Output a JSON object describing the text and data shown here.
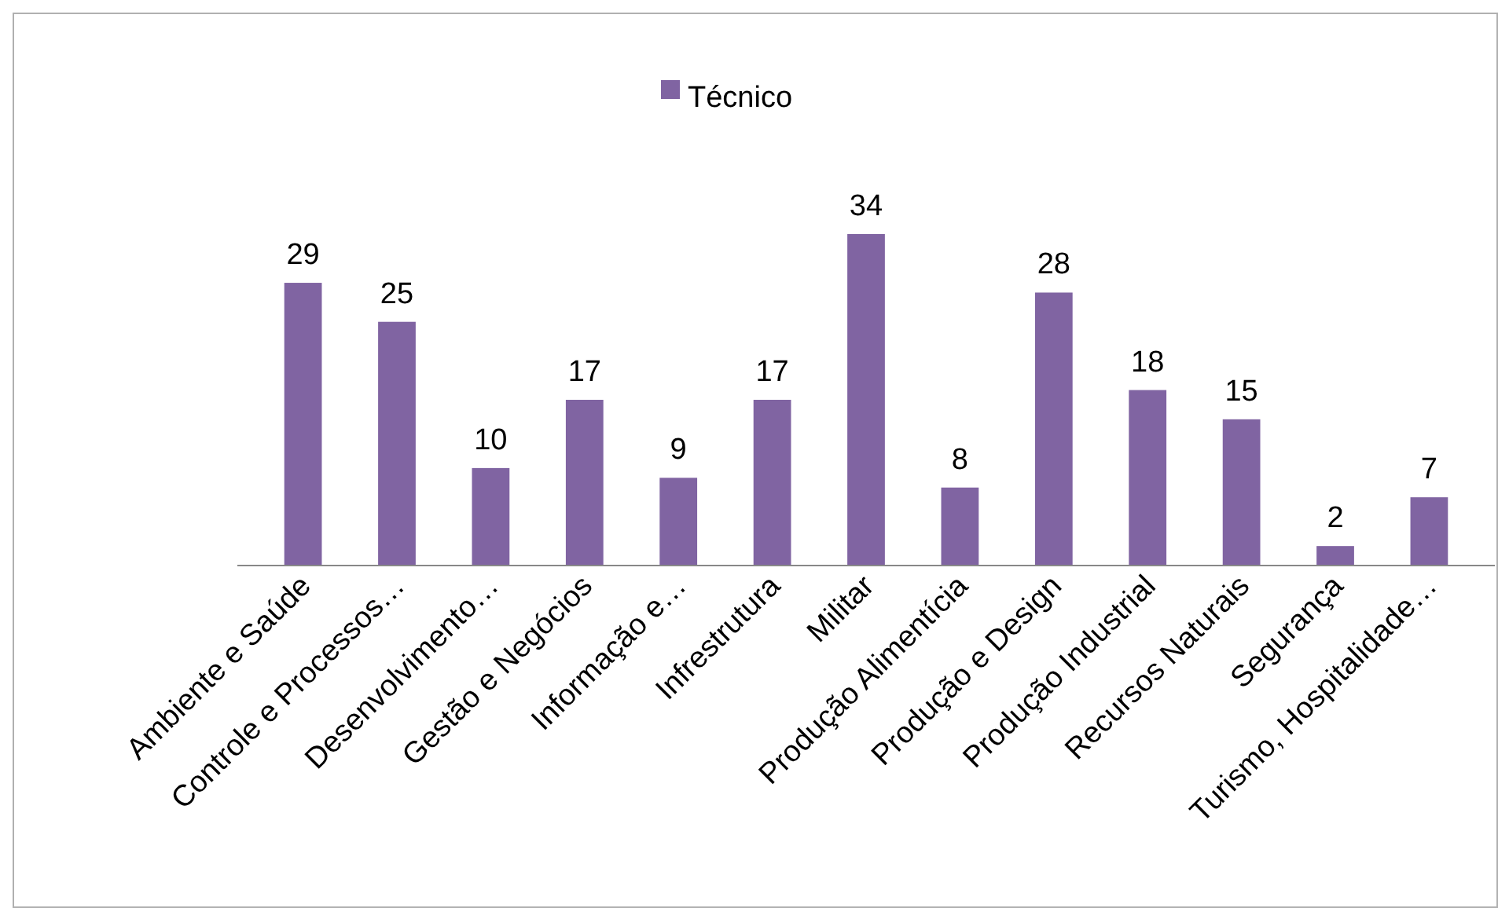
{
  "chart_data": {
    "type": "bar",
    "categories": [
      "Ambiente e Saúde",
      "Controle e Processos…",
      "Desenvolvimento…",
      "Gestão e Negócios",
      "Informação e…",
      "Infrestrutura",
      "Militar",
      "Produção Alimentícia",
      "Produção e Design",
      "Produção Industrial",
      "Recursos Naturais",
      "Segurança",
      "Turismo, Hospitalidade…"
    ],
    "series": [
      {
        "name": "Técnico",
        "color": "#8064a2",
        "values": [
          29,
          25,
          10,
          17,
          9,
          17,
          34,
          8,
          28,
          18,
          15,
          2,
          7
        ]
      }
    ],
    "data_labels": true,
    "legend": "top"
  }
}
